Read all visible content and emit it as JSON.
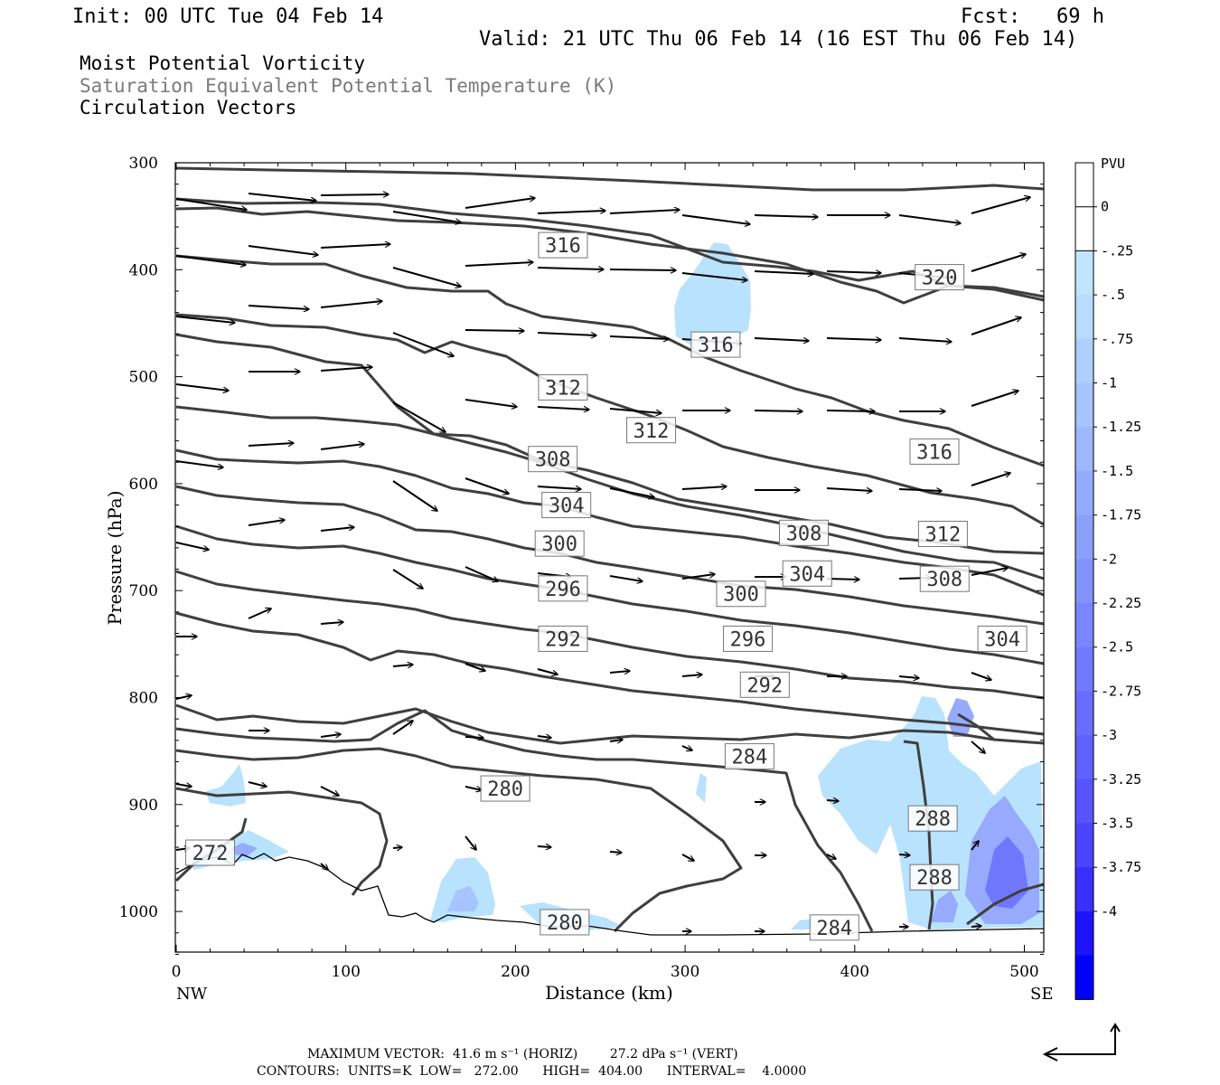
{
  "header": {
    "init": "Init: 00 UTC Tue 04 Feb 14",
    "fcst": "Fcst:   69 h",
    "valid": "Valid: 21 UTC Thu 06 Feb 14 (16 EST Thu 06 Feb 14)"
  },
  "titles": {
    "line1": "Moist Potential Vorticity",
    "line2": "Saturation Equivalent Potential Temperature (K)",
    "line3": "Circulation Vectors"
  },
  "chart_data": {
    "type": "contour",
    "xlabel": "Distance (km)",
    "ylabel": "Pressure (hPa)",
    "xlim": [
      0,
      512
    ],
    "ylim": [
      1040,
      300
    ],
    "x_ticks": [
      0,
      100,
      200,
      300,
      400,
      500
    ],
    "y_ticks": [
      300,
      400,
      500,
      600,
      700,
      800,
      900,
      1000
    ],
    "x_end_labels": {
      "left": "NW",
      "right": "SE"
    },
    "colorbar": {
      "unit": "PVU",
      "labels": [
        "0",
        "-.25",
        "-.5",
        "-.75",
        "-1",
        "-1.25",
        "-1.5",
        "-1.75",
        "-2",
        "-2.25",
        "-2.5",
        "-2.75",
        "-3",
        "-3.25",
        "-3.5",
        "-3.75",
        "-4"
      ],
      "colors": [
        "#ffffff",
        "#ffffff",
        "#bfe6fd",
        "#b7dcfd",
        "#aed0fd",
        "#a6c4fd",
        "#9db8fd",
        "#94abfd",
        "#8b9ffd",
        "#8393fd",
        "#7a86fd",
        "#717afd",
        "#696dfd",
        "#6061fd",
        "#5754fd",
        "#4b44fd",
        "#3a30fd",
        "#1d14fd",
        "#0000ff"
      ]
    },
    "contour_labels": [
      {
        "text": "316",
        "x": 228,
        "p": 377
      },
      {
        "text": "320",
        "x": 450,
        "p": 407
      },
      {
        "text": "316",
        "x": 318,
        "p": 470
      },
      {
        "text": "312",
        "x": 228,
        "p": 510
      },
      {
        "text": "312",
        "x": 280,
        "p": 550
      },
      {
        "text": "316",
        "x": 447,
        "p": 570
      },
      {
        "text": "308",
        "x": 222,
        "p": 577
      },
      {
        "text": "304",
        "x": 230,
        "p": 620
      },
      {
        "text": "308",
        "x": 370,
        "p": 646
      },
      {
        "text": "312",
        "x": 452,
        "p": 647
      },
      {
        "text": "300",
        "x": 226,
        "p": 656
      },
      {
        "text": "304",
        "x": 372,
        "p": 684
      },
      {
        "text": "308",
        "x": 453,
        "p": 689
      },
      {
        "text": "296",
        "x": 228,
        "p": 698
      },
      {
        "text": "300",
        "x": 333,
        "p": 703
      },
      {
        "text": "292",
        "x": 228,
        "p": 745
      },
      {
        "text": "296",
        "x": 337,
        "p": 745
      },
      {
        "text": "304",
        "x": 487,
        "p": 745
      },
      {
        "text": "292",
        "x": 347,
        "p": 788
      },
      {
        "text": "284",
        "x": 338,
        "p": 855
      },
      {
        "text": "280",
        "x": 194,
        "p": 885
      },
      {
        "text": "288",
        "x": 446,
        "p": 913
      },
      {
        "text": "272",
        "x": 20,
        "p": 945
      },
      {
        "text": "288",
        "x": 447,
        "p": 968
      },
      {
        "text": "280",
        "x": 229,
        "p": 1010
      },
      {
        "text": "284",
        "x": 388,
        "p": 1015
      }
    ]
  },
  "footer": {
    "max_vector": "MAXIMUM VECTOR:  41.6 m s⁻¹ (HORIZ)        27.2 dPa s⁻¹ (VERT)",
    "contours": "CONTOURS:  UNITS=K  LOW=   272.00      HIGH=  404.00      INTERVAL=    4.0000"
  }
}
